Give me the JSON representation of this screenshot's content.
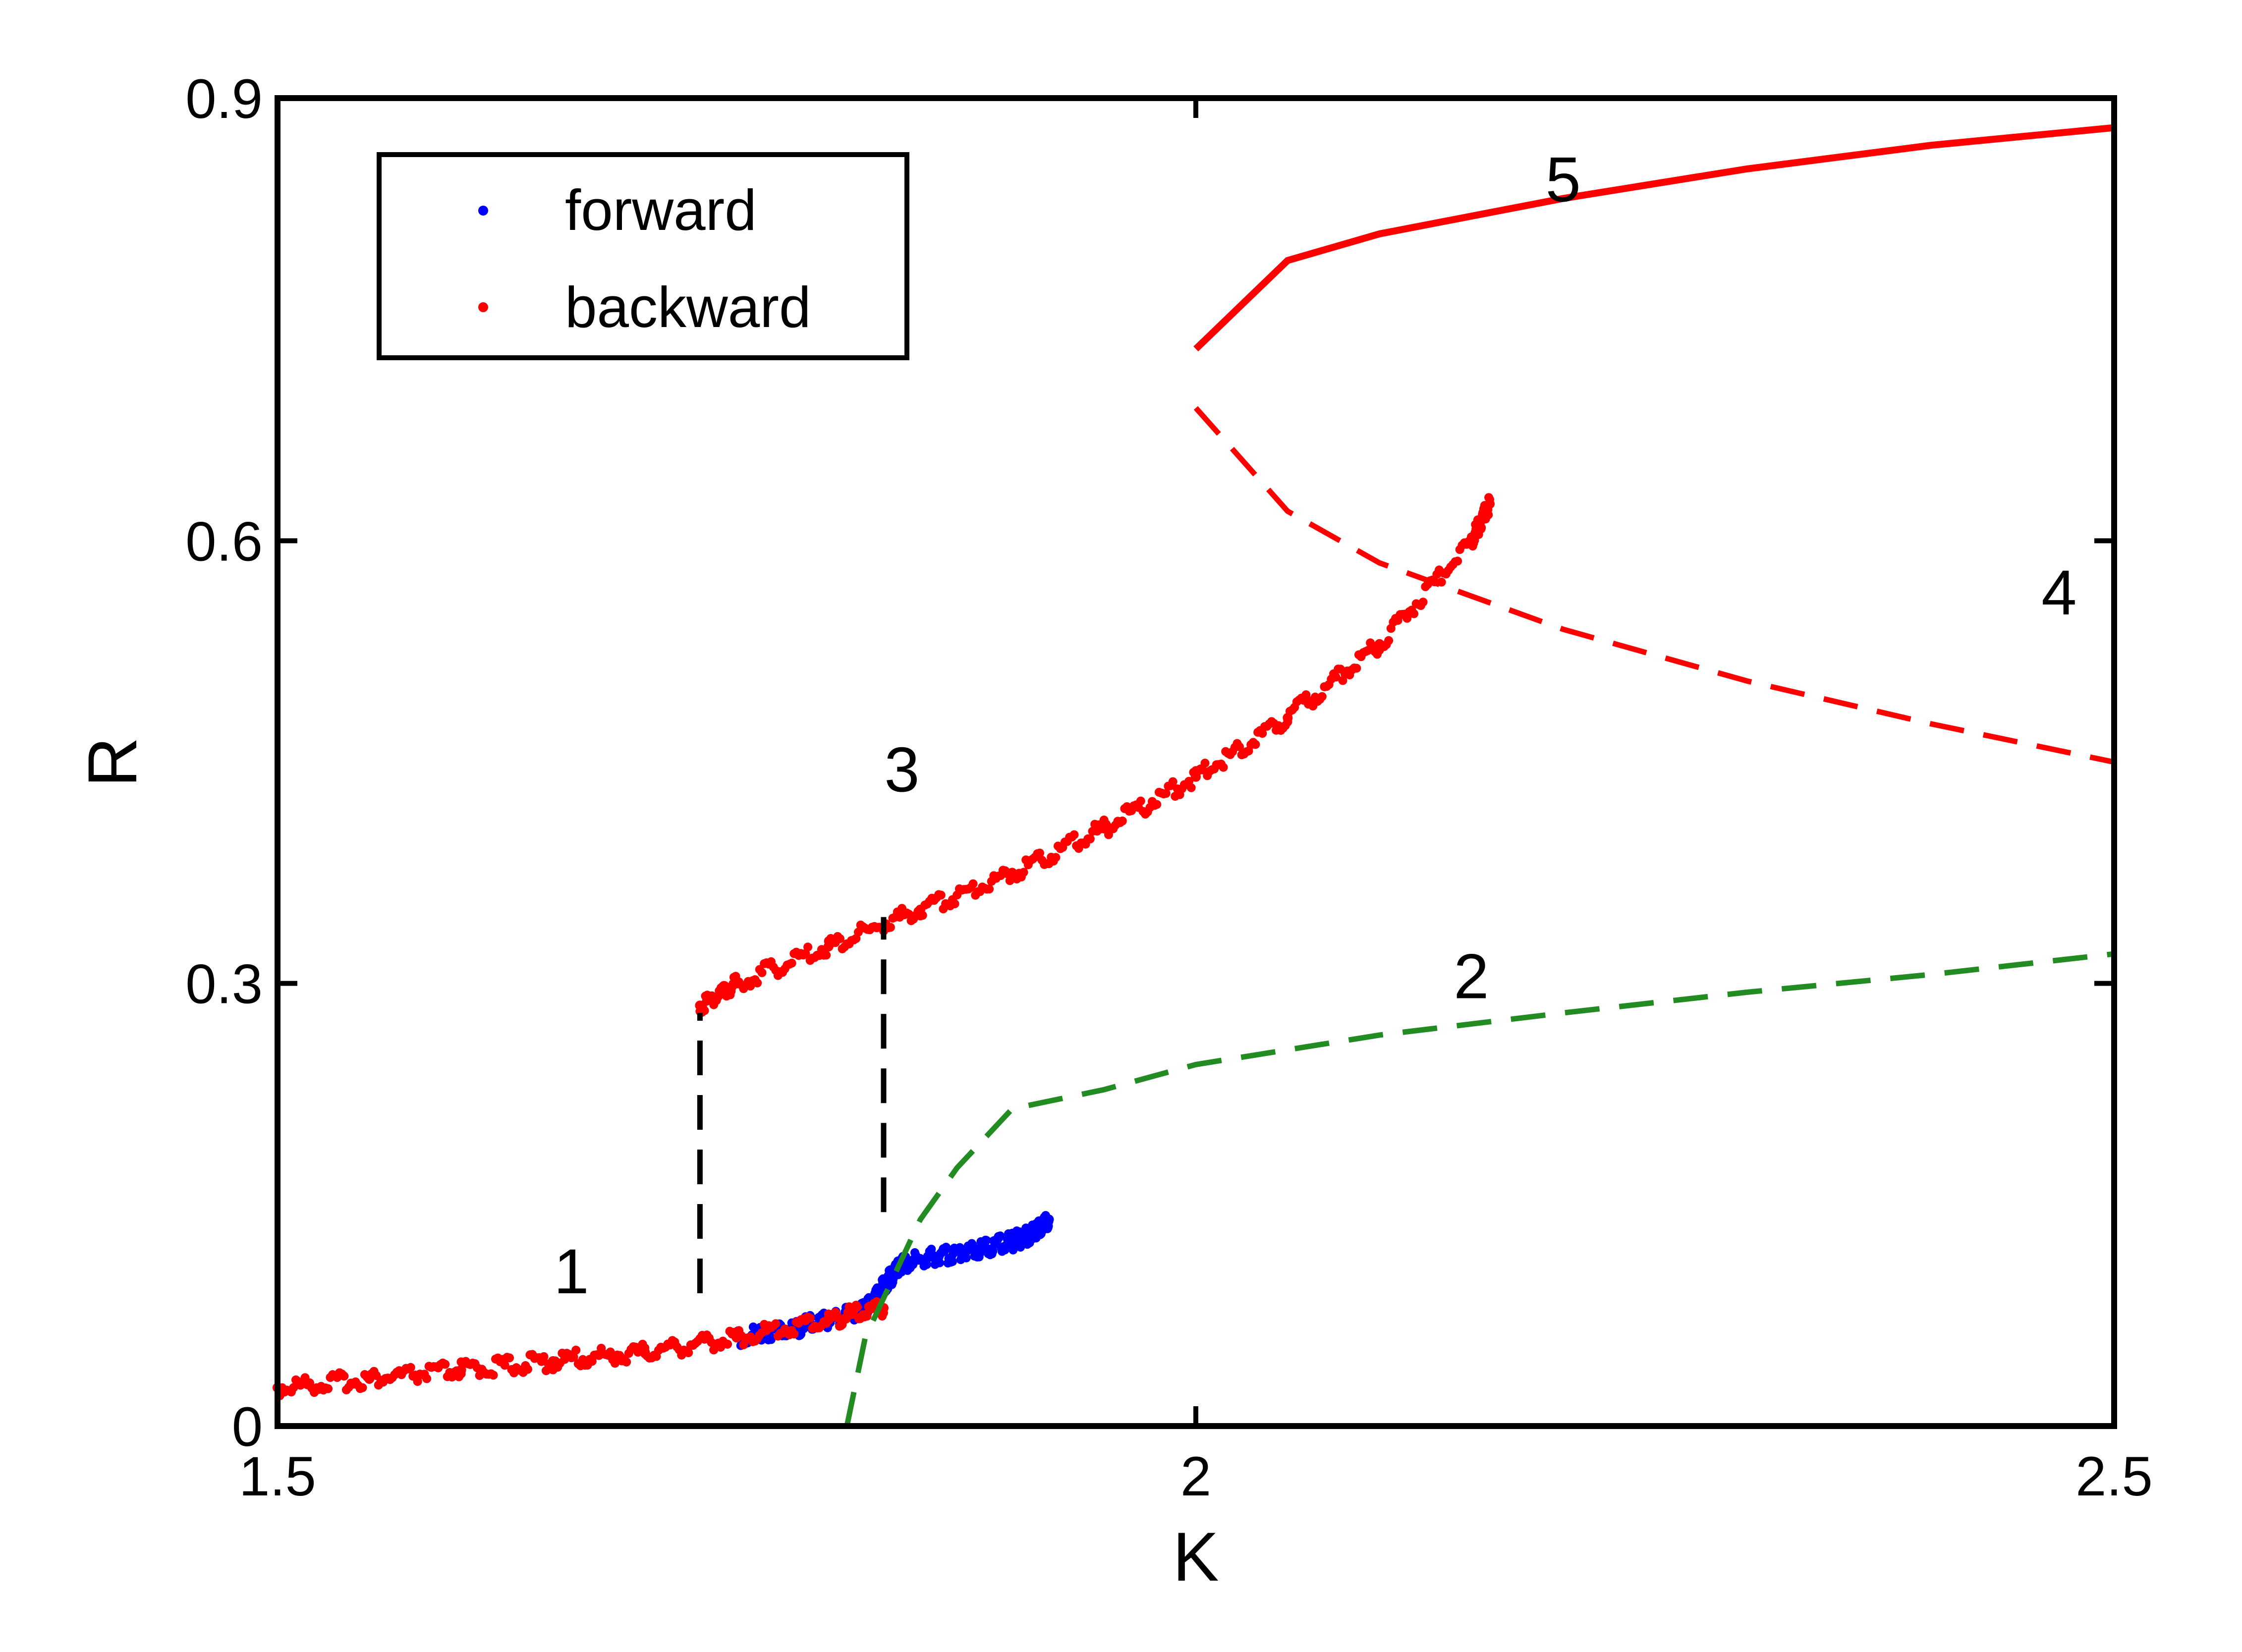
{
  "chart_data": {
    "type": "scatter",
    "title": "",
    "xlabel": "K",
    "ylabel": "R",
    "xlim": [
      1.5,
      2.5
    ],
    "ylim": [
      0,
      0.9
    ],
    "xticks": [
      1.5,
      2,
      2.5
    ],
    "xtick_labels": [
      "1.5",
      "2",
      "2.5"
    ],
    "yticks": [
      0,
      0.3,
      0.6,
      0.9
    ],
    "ytick_labels": [
      "0",
      "0.3",
      "0.6",
      "0.9"
    ],
    "grid": false,
    "legend_position": "top-left",
    "legend": [
      {
        "label": "forward",
        "color": "#0000ff"
      },
      {
        "label": "backward",
        "color": "#ff0000"
      }
    ],
    "series": [
      {
        "name": "forward",
        "color": "#0000ff",
        "style": "dots",
        "points": [
          [
            1.5,
            0.026
          ],
          [
            1.55,
            0.032
          ],
          [
            1.6,
            0.038
          ],
          [
            1.65,
            0.044
          ],
          [
            1.7,
            0.05
          ],
          [
            1.75,
            0.06
          ],
          [
            1.78,
            0.066
          ],
          [
            1.8,
            0.072
          ],
          [
            1.82,
            0.08
          ],
          [
            1.83,
            0.095
          ],
          [
            1.84,
            0.11
          ],
          [
            1.86,
            0.115
          ],
          [
            1.88,
            0.12
          ],
          [
            1.9,
            0.125
          ],
          [
            1.91,
            0.13
          ],
          [
            1.92,
            0.14
          ]
        ]
      },
      {
        "name": "backward",
        "color": "#ff0000",
        "style": "dots",
        "points": [
          [
            1.5,
            0.026
          ],
          [
            1.55,
            0.032
          ],
          [
            1.6,
            0.038
          ],
          [
            1.65,
            0.044
          ],
          [
            1.7,
            0.05
          ],
          [
            1.75,
            0.06
          ],
          [
            1.8,
            0.072
          ],
          [
            1.83,
            0.08
          ],
          [
            1.73,
            0.285
          ],
          [
            1.75,
            0.3
          ],
          [
            1.8,
            0.325
          ],
          [
            1.85,
            0.35
          ],
          [
            1.9,
            0.375
          ],
          [
            1.95,
            0.405
          ],
          [
            2.0,
            0.44
          ],
          [
            2.05,
            0.48
          ],
          [
            2.1,
            0.53
          ],
          [
            2.15,
            0.6
          ],
          [
            2.16,
            0.625
          ]
        ]
      },
      {
        "name": "",
        "color": "#ff0000",
        "style": "solid",
        "points": [
          [
            2.0,
            0.73
          ],
          [
            2.05,
            0.79
          ],
          [
            2.1,
            0.808
          ],
          [
            2.2,
            0.832
          ],
          [
            2.3,
            0.852
          ],
          [
            2.4,
            0.868
          ],
          [
            2.5,
            0.88
          ]
        ]
      },
      {
        "name": "",
        "color": "#ff0000",
        "style": "dashed",
        "points": [
          [
            2.0,
            0.69
          ],
          [
            2.05,
            0.62
          ],
          [
            2.1,
            0.585
          ],
          [
            2.2,
            0.54
          ],
          [
            2.3,
            0.505
          ],
          [
            2.4,
            0.476
          ],
          [
            2.5,
            0.45
          ]
        ]
      },
      {
        "name": "",
        "color": "#228b22",
        "style": "dashed",
        "points": [
          [
            1.81,
            0.0
          ],
          [
            1.82,
            0.06
          ],
          [
            1.85,
            0.14
          ],
          [
            1.87,
            0.175
          ],
          [
            1.9,
            0.215
          ],
          [
            1.95,
            0.228
          ],
          [
            2.0,
            0.245
          ],
          [
            2.05,
            0.255
          ],
          [
            2.1,
            0.265
          ],
          [
            2.2,
            0.28
          ],
          [
            2.3,
            0.294
          ],
          [
            2.4,
            0.306
          ],
          [
            2.5,
            0.32
          ]
        ]
      },
      {
        "name": "",
        "color": "#000000",
        "style": "dashed",
        "points": [
          [
            1.73,
            0.09
          ],
          [
            1.73,
            0.28
          ]
        ]
      },
      {
        "name": "",
        "color": "#000000",
        "style": "dashed",
        "points": [
          [
            1.83,
            0.145
          ],
          [
            1.83,
            0.345
          ]
        ]
      }
    ],
    "annotations": [
      {
        "text": "1",
        "x": 1.66,
        "y": 0.09
      },
      {
        "text": "2",
        "x": 2.15,
        "y": 0.29
      },
      {
        "text": "3",
        "x": 1.84,
        "y": 0.43
      },
      {
        "text": "4",
        "x": 2.47,
        "y": 0.55
      },
      {
        "text": "5",
        "x": 2.2,
        "y": 0.83
      }
    ]
  }
}
